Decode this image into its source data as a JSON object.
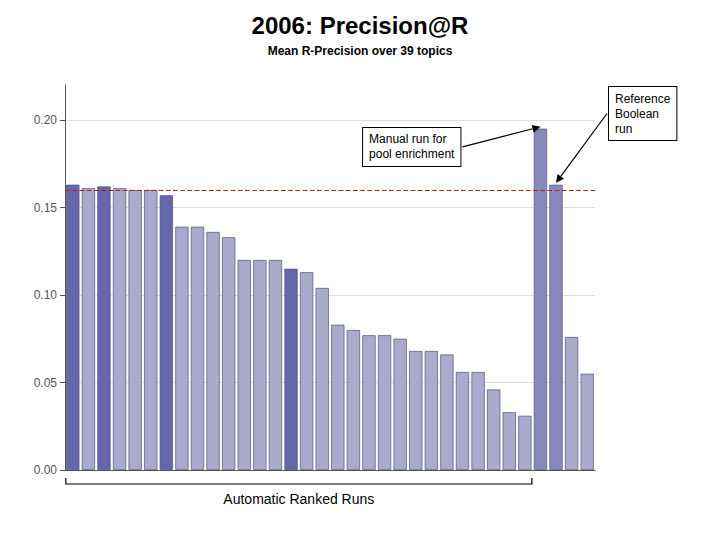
{
  "chart_data": {
    "type": "bar",
    "title": "2006: Precision@R",
    "subtitle": "Mean R-Precision over 39 topics",
    "xlabel": "Automatic Ranked Runs",
    "categories": [
      null,
      null,
      null,
      null,
      null,
      null,
      null,
      null,
      null,
      null,
      null,
      null,
      null,
      null,
      null,
      null,
      null,
      null,
      null,
      null,
      null,
      null,
      null,
      null,
      null,
      null,
      null,
      null,
      null,
      null,
      null,
      null,
      null,
      null
    ],
    "values": [
      0.163,
      0.161,
      0.162,
      0.161,
      0.16,
      0.16,
      0.157,
      0.139,
      0.139,
      0.136,
      0.133,
      0.12,
      0.12,
      0.12,
      0.115,
      0.113,
      0.104,
      0.083,
      0.08,
      0.077,
      0.077,
      0.075,
      0.068,
      0.068,
      0.066,
      0.056,
      0.056,
      0.046,
      0.033,
      0.031,
      0.195,
      0.163,
      0.076,
      0.055
    ],
    "colors": [
      "#6666aa",
      "#aaaacc",
      "#6666aa",
      "#aaaacc",
      "#aaaacc",
      "#aaaacc",
      "#6666aa",
      "#aaaacc",
      "#aaaacc",
      "#aaaacc",
      "#aaaacc",
      "#aaaacc",
      "#aaaacc",
      "#aaaacc",
      "#6666aa",
      "#aaaacc",
      "#aaaacc",
      "#aaaacc",
      "#aaaacc",
      "#aaaacc",
      "#aaaacc",
      "#aaaacc",
      "#aaaacc",
      "#aaaacc",
      "#aaaacc",
      "#aaaacc",
      "#aaaacc",
      "#aaaacc",
      "#aaaacc",
      "#aaaacc",
      "#8888bb",
      "#8888bb",
      "#aaaacc",
      "#aaaacc"
    ],
    "reference_line": {
      "value": 0.163,
      "color": "#aa2222",
      "line_style": "dashed"
    },
    "annotations": [
      {
        "text": "Manual run for\npool enrichment",
        "bar_index": 30
      },
      {
        "text": "Reference\nBoolean\nrun",
        "bar_index": 31
      }
    ],
    "bracket": {
      "text": "Automatic Ranked Runs",
      "start": 0,
      "end": 29
    },
    "ylim": [
      0.0,
      0.22
    ],
    "yticks": [
      {
        "value": 0.0,
        "label": "0.00"
      },
      {
        "value": 0.05,
        "label": "0.05"
      },
      {
        "value": 0.1,
        "label": "0.10"
      },
      {
        "value": 0.15,
        "label": "0.15"
      },
      {
        "value": 0.2,
        "label": "0.20"
      }
    ],
    "grid": true,
    "tick_labels": "y"
  }
}
